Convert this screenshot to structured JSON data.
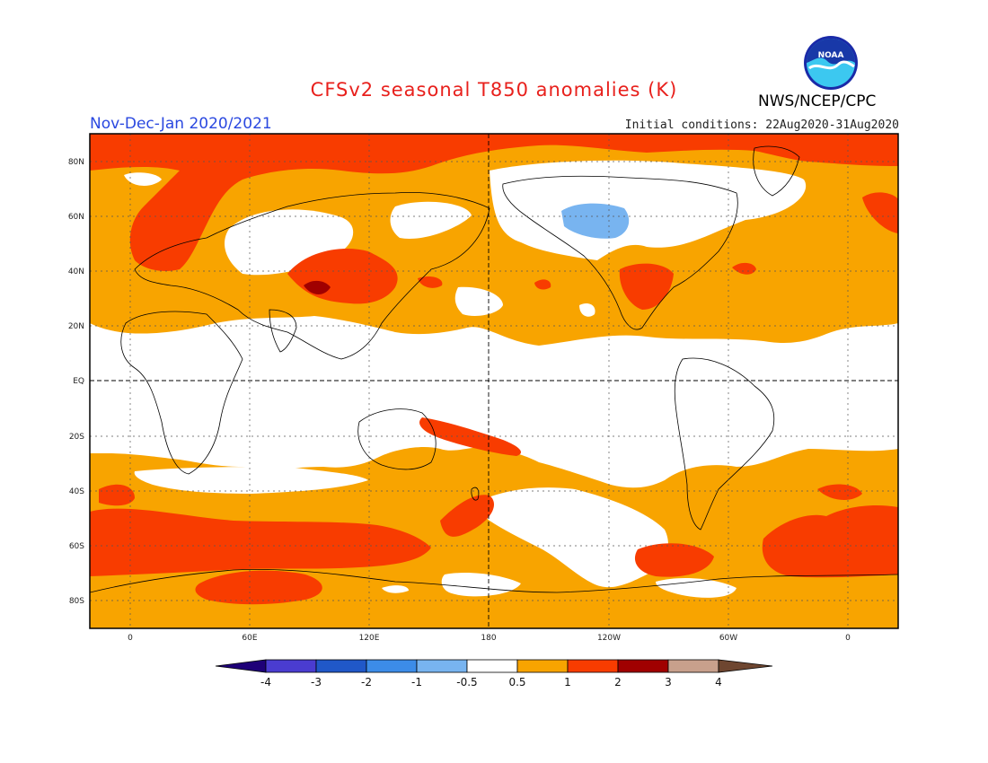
{
  "header": {
    "title": "CFSv2 seasonal T850 anomalies (K)",
    "period": "Nov-Dec-Jan 2020/2021",
    "initial_conditions": "Initial conditions: 22Aug2020-31Aug2020",
    "agency": "NWS/NCEP/CPC",
    "logo_text": "NOAA"
  },
  "map": {
    "lat_labels": [
      "80N",
      "60N",
      "40N",
      "20N",
      "EQ",
      "20S",
      "40S",
      "60S",
      "80S"
    ],
    "lon_labels": [
      "0",
      "60E",
      "120E",
      "180",
      "120W",
      "60W",
      "0"
    ],
    "colors": {
      "ocean_white": "#ffffff",
      "light_orange": "#f8a400",
      "red_orange": "#f83c00",
      "dark_red": "#a00000",
      "light_blue": "#78b4f0"
    }
  },
  "colorbar": {
    "labels": [
      "-4",
      "-3",
      "-2",
      "-1",
      "-0.5",
      "0.5",
      "1",
      "2",
      "3",
      "4"
    ],
    "colors": [
      "#1e0078",
      "#4a3cd0",
      "#2058c8",
      "#3c8ce8",
      "#78b4f0",
      "#ffffff",
      "#f8a400",
      "#f83c00",
      "#a00000",
      "#c8a08c",
      "#6e4630"
    ]
  }
}
